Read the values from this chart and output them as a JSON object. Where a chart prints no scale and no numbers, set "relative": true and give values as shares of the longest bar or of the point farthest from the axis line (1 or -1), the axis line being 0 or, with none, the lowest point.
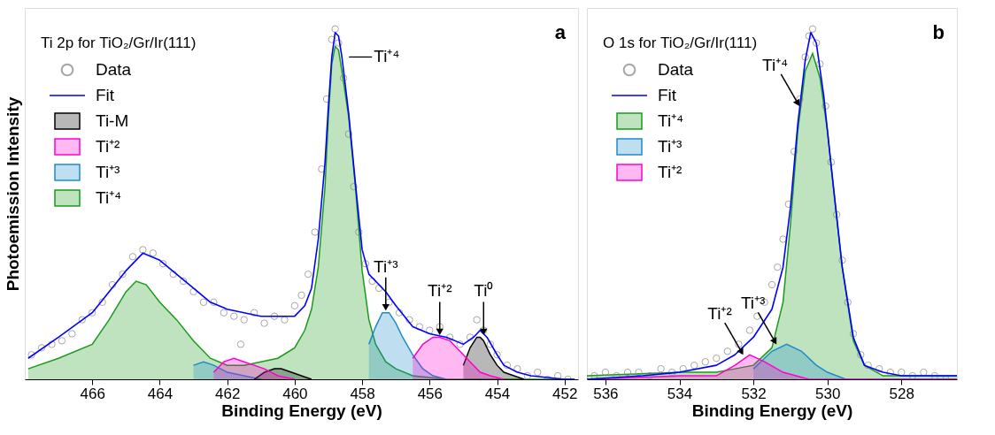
{
  "chart_data": [
    {
      "type": "area",
      "relative": true,
      "xlabel": "Binding Energy (eV)",
      "ylabel": "Photoemission Intensity",
      "legend_title": "Ti 2p for TiO₂/Gr/Ir(111)",
      "legend": "top left",
      "grid": false,
      "xlim": [
        468,
        451.6
      ],
      "xticks": [
        466,
        464,
        462,
        460,
        458,
        456,
        454,
        452
      ],
      "series": [
        {
          "name": "Data",
          "type": "scatter",
          "color": "#808080",
          "x": [
            467.8,
            467.5,
            467.2,
            466.9,
            466.6,
            466.3,
            466.0,
            465.7,
            465.4,
            465.1,
            464.8,
            464.5,
            464.2,
            463.9,
            463.6,
            463.3,
            463.0,
            462.7,
            462.4,
            462.1,
            461.8,
            461.6,
            461.5,
            461.2,
            460.9,
            460.6,
            460.3,
            460.0,
            459.8,
            459.6,
            459.4,
            459.2,
            459.05,
            458.9,
            458.8,
            458.7,
            458.55,
            458.4,
            458.25,
            458.1,
            457.9,
            457.7,
            457.5,
            457.2,
            456.9,
            456.6,
            456.3,
            456.0,
            455.7,
            455.4,
            455.1,
            454.8,
            454.6,
            454.4,
            454.2,
            454.0,
            453.7,
            453.4,
            453.1,
            452.8,
            452.5,
            452.2,
            451.9
          ],
          "values": [
            0.07,
            0.09,
            0.1,
            0.11,
            0.13,
            0.17,
            0.19,
            0.22,
            0.27,
            0.3,
            0.35,
            0.37,
            0.36,
            0.33,
            0.3,
            0.28,
            0.25,
            0.22,
            0.22,
            0.19,
            0.18,
            0.1,
            0.17,
            0.19,
            0.16,
            0.18,
            0.17,
            0.21,
            0.24,
            0.3,
            0.42,
            0.6,
            0.8,
            0.97,
            1.0,
            0.96,
            0.86,
            0.7,
            0.55,
            0.42,
            0.33,
            0.28,
            0.26,
            0.22,
            0.19,
            0.17,
            0.15,
            0.14,
            0.15,
            0.12,
            0.1,
            0.12,
            0.17,
            0.14,
            0.1,
            0.07,
            0.04,
            0.03,
            0.01,
            0.02,
            0.0,
            0.01,
            0.0
          ]
        },
        {
          "name": "Fit",
          "type": "line",
          "color": "#0000ff",
          "x": [
            467.9,
            467,
            466,
            465.5,
            465,
            464.5,
            464,
            463.5,
            463,
            462.5,
            462,
            461.5,
            461,
            460.5,
            460,
            459.7,
            459.5,
            459.3,
            459.1,
            459,
            458.9,
            458.8,
            458.7,
            458.6,
            458.4,
            458.2,
            458,
            457.8,
            457.6,
            457.3,
            457,
            456.5,
            456,
            455.5,
            455,
            454.7,
            454.5,
            454.3,
            454,
            453.8,
            453.4,
            453,
            452,
            451.7
          ],
          "values": [
            0.06,
            0.12,
            0.19,
            0.25,
            0.31,
            0.36,
            0.34,
            0.3,
            0.26,
            0.22,
            0.2,
            0.19,
            0.18,
            0.18,
            0.18,
            0.21,
            0.26,
            0.4,
            0.62,
            0.78,
            0.92,
            0.99,
            0.98,
            0.92,
            0.76,
            0.56,
            0.37,
            0.3,
            0.28,
            0.25,
            0.21,
            0.15,
            0.13,
            0.12,
            0.1,
            0.12,
            0.14,
            0.12,
            0.07,
            0.04,
            0.02,
            0.01,
            0.0,
            0.0
          ]
        },
        {
          "name": "Ti-M",
          "color": "#000000",
          "x": [
            461.2,
            460.9,
            460.6,
            460.4,
            460.1,
            459.8,
            459.5,
            457,
            455.0,
            454.8,
            454.6,
            454.5,
            454.4,
            454.2,
            454.0,
            453.8,
            453.5,
            453.2
          ],
          "values": [
            0,
            0.02,
            0.03,
            0.03,
            0.02,
            0.01,
            0,
            null,
            0.04,
            0.09,
            0.12,
            0.12,
            0.11,
            0.07,
            0.04,
            0.02,
            0.01,
            0
          ]
        },
        {
          "name": "Ti⁺²",
          "color": "#ff00cc",
          "x": [
            462.4,
            462.1,
            461.8,
            461.5,
            461.2,
            460.9,
            460.5,
            460.0,
            458,
            456.5,
            456.2,
            455.9,
            455.7,
            455.4,
            455.1,
            454.8,
            454.5,
            454.2,
            453.8
          ],
          "values": [
            0.02,
            0.05,
            0.06,
            0.05,
            0.04,
            0.03,
            0.01,
            0,
            null,
            0.06,
            0.1,
            0.12,
            0.12,
            0.11,
            0.08,
            0.05,
            0.02,
            0.01,
            0
          ]
        },
        {
          "name": "Ti⁺³",
          "color": "#1a8ccc",
          "x": [
            463.0,
            462.7,
            462.4,
            462.0,
            461.5,
            461.0,
            459.5,
            457.8,
            457.6,
            457.4,
            457.2,
            457.0,
            456.8,
            456.5,
            456.2,
            455.9,
            455.5
          ],
          "values": [
            0.04,
            0.05,
            0.04,
            0.02,
            0.01,
            0,
            null,
            0.1,
            0.15,
            0.19,
            0.19,
            0.16,
            0.12,
            0.07,
            0.03,
            0.01,
            0
          ]
        },
        {
          "name": "Ti⁺⁴",
          "color": "#1a9a1a",
          "x": [
            467.9,
            467,
            466,
            465.5,
            465,
            464.7,
            464.4,
            464,
            463.5,
            463,
            462.5,
            462,
            461.5,
            461,
            460.5,
            460,
            459.7,
            459.5,
            459.3,
            459.1,
            459,
            458.9,
            458.8,
            458.7,
            458.6,
            458.4,
            458.2,
            458,
            457.8,
            457.6,
            457.3,
            457,
            456.5,
            455.5,
            454,
            452.5,
            451.7
          ],
          "values": [
            0.03,
            0.06,
            0.1,
            0.17,
            0.25,
            0.28,
            0.27,
            0.22,
            0.17,
            0.11,
            0.06,
            0.04,
            0.04,
            0.05,
            0.06,
            0.09,
            0.14,
            0.2,
            0.32,
            0.55,
            0.75,
            0.9,
            0.95,
            0.94,
            0.88,
            0.75,
            0.55,
            0.31,
            0.17,
            0.1,
            0.05,
            0.03,
            0.01,
            0.0,
            0.0,
            0.0,
            0.0
          ]
        }
      ],
      "annotations": [
        "a",
        {
          "text": "Ti⁺⁴",
          "x": 458.6,
          "y": 0.92
        },
        {
          "text": "Ti⁺³",
          "x": 457.3,
          "y": 0.19
        },
        {
          "text": "Ti⁺²",
          "x": 455.7,
          "y": 0.12
        },
        {
          "text": "Ti⁰",
          "x": 454.4,
          "y": 0.12
        }
      ]
    },
    {
      "type": "area",
      "relative": true,
      "xlabel": "Binding Energy (eV)",
      "legend_title": "O 1s for TiO₂/Gr/Ir(111)",
      "legend": "top left",
      "grid": false,
      "xlim": [
        536.5,
        526.5
      ],
      "xticks": [
        536,
        534,
        532,
        530,
        528
      ],
      "series": [
        {
          "name": "Data",
          "type": "scatter",
          "color": "#808080",
          "x": [
            536.3,
            536.0,
            535.7,
            535.4,
            535.1,
            534.8,
            534.5,
            534.2,
            533.9,
            533.6,
            533.3,
            533.0,
            532.7,
            532.4,
            532.1,
            531.9,
            531.7,
            531.5,
            531.35,
            531.2,
            531.05,
            530.9,
            530.75,
            530.6,
            530.5,
            530.4,
            530.3,
            530.2,
            530.05,
            529.9,
            529.75,
            529.6,
            529.45,
            529.3,
            529.1,
            528.9,
            528.6,
            528.3,
            528.0,
            527.7,
            527.4,
            527.1,
            526.8
          ],
          "values": [
            0.01,
            0.02,
            0.01,
            0.02,
            0.02,
            0.01,
            0.03,
            0.02,
            0.03,
            0.04,
            0.05,
            0.06,
            0.08,
            0.1,
            0.14,
            0.18,
            0.22,
            0.27,
            0.32,
            0.4,
            0.5,
            0.65,
            0.8,
            0.92,
            0.98,
            1.0,
            0.96,
            0.9,
            0.78,
            0.62,
            0.47,
            0.34,
            0.22,
            0.13,
            0.07,
            0.04,
            0.03,
            0.02,
            0.02,
            0.01,
            0.02,
            0.01,
            0.0
          ]
        },
        {
          "name": "Fit",
          "type": "line",
          "color": "#0000ff",
          "x": [
            536.5,
            535,
            534,
            533,
            532.5,
            532,
            531.5,
            531.2,
            531,
            530.8,
            530.6,
            530.45,
            530.3,
            530.1,
            529.9,
            529.6,
            529.3,
            529,
            528.5,
            528,
            526.5
          ],
          "values": [
            0.0,
            0.01,
            0.02,
            0.04,
            0.07,
            0.12,
            0.2,
            0.32,
            0.49,
            0.73,
            0.91,
            0.99,
            0.96,
            0.81,
            0.61,
            0.32,
            0.12,
            0.04,
            0.02,
            0.01,
            0.01
          ]
        },
        {
          "name": "Ti⁺⁴",
          "color": "#1a9a1a",
          "x": [
            536.5,
            534,
            533,
            532.5,
            532,
            531.5,
            531.2,
            531,
            530.8,
            530.6,
            530.4,
            530.2,
            530,
            529.8,
            529.6,
            529.3,
            529,
            528.5,
            528,
            526.5
          ],
          "values": [
            0.01,
            0.02,
            0.02,
            0.03,
            0.04,
            0.09,
            0.22,
            0.44,
            0.71,
            0.88,
            0.93,
            0.86,
            0.71,
            0.51,
            0.32,
            0.11,
            0.04,
            0.01,
            0.01,
            0.01
          ]
        },
        {
          "name": "Ti⁺³",
          "color": "#1a8ccc",
          "x": [
            532,
            531.8,
            531.5,
            531.1,
            530.7,
            530.3,
            530,
            529.5,
            528.5,
            526.5
          ],
          "values": [
            0.03,
            0.05,
            0.08,
            0.1,
            0.08,
            0.04,
            0.02,
            0.0,
            0.0,
            0.0
          ]
        },
        {
          "name": "Ti⁺²",
          "color": "#ff00cc",
          "x": [
            536.5,
            534,
            533,
            532.5,
            532.1,
            531.7,
            531.2,
            530.5,
            529,
            526.5
          ],
          "values": [
            0.0,
            0.01,
            0.01,
            0.04,
            0.07,
            0.05,
            0.02,
            0.0,
            0.0,
            0.0
          ]
        }
      ],
      "annotations": [
        "b",
        {
          "text": "Ti⁺⁴",
          "x": 530.68,
          "y": 0.77
        },
        {
          "text": "Ti⁺³",
          "x": 531.3,
          "y": 0.09
        },
        {
          "text": "Ti⁺²",
          "x": 532.2,
          "y": 0.06
        }
      ]
    }
  ]
}
